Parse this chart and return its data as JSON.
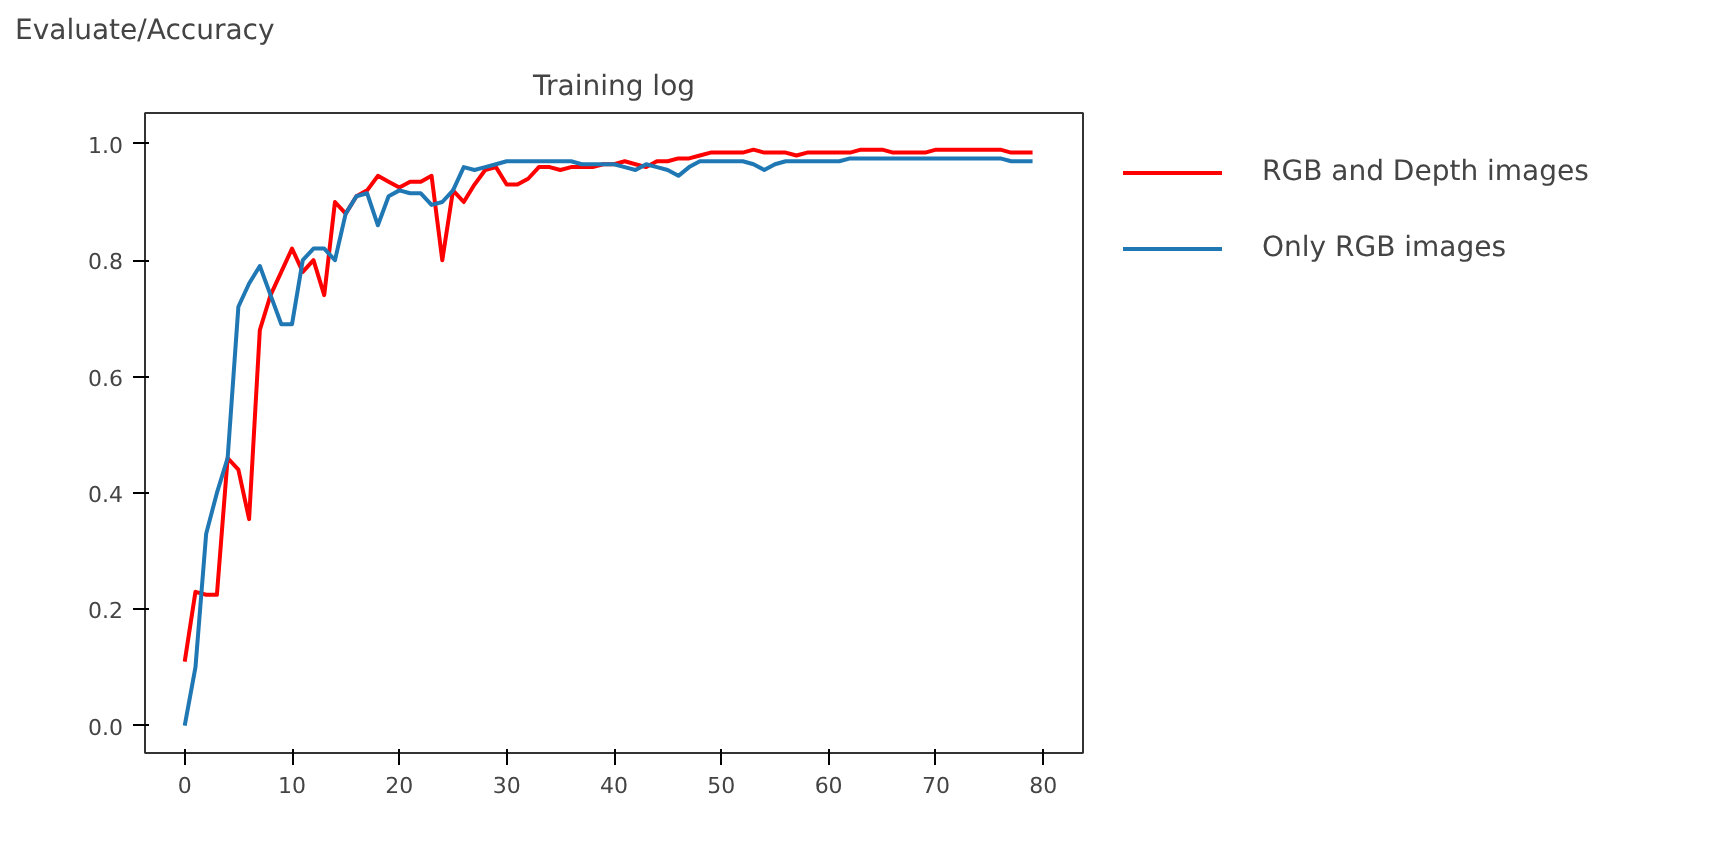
{
  "chart_data": {
    "type": "line",
    "title": "Training log",
    "ylabel": "Evaluate/Accuracy",
    "x": [
      0,
      1,
      2,
      3,
      4,
      5,
      6,
      7,
      8,
      9,
      10,
      11,
      12,
      13,
      14,
      15,
      16,
      17,
      18,
      19,
      20,
      21,
      22,
      23,
      24,
      25,
      26,
      27,
      28,
      29,
      30,
      31,
      32,
      33,
      34,
      35,
      36,
      37,
      38,
      39,
      40,
      41,
      42,
      43,
      44,
      45,
      46,
      47,
      48,
      49,
      50,
      51,
      52,
      53,
      54,
      55,
      56,
      57,
      58,
      59,
      60,
      61,
      62,
      63,
      64,
      65,
      66,
      67,
      68,
      69,
      70,
      71,
      72,
      73,
      74,
      75,
      76,
      77,
      78,
      79
    ],
    "series": [
      {
        "name": "RGB and Depth images",
        "color": "#ff0000",
        "values": [
          0.11,
          0.23,
          0.225,
          0.225,
          0.46,
          0.44,
          0.355,
          0.68,
          0.74,
          0.78,
          0.82,
          0.78,
          0.8,
          0.74,
          0.9,
          0.88,
          0.91,
          0.92,
          0.945,
          0.935,
          0.925,
          0.935,
          0.935,
          0.945,
          0.8,
          0.92,
          0.9,
          0.93,
          0.955,
          0.96,
          0.93,
          0.93,
          0.94,
          0.96,
          0.96,
          0.955,
          0.96,
          0.96,
          0.96,
          0.965,
          0.965,
          0.97,
          0.965,
          0.96,
          0.97,
          0.97,
          0.975,
          0.975,
          0.98,
          0.985,
          0.985,
          0.985,
          0.985,
          0.99,
          0.985,
          0.985,
          0.985,
          0.98,
          0.985,
          0.985,
          0.985,
          0.985,
          0.985,
          0.99,
          0.99,
          0.99,
          0.985,
          0.985,
          0.985,
          0.985,
          0.99,
          0.99,
          0.99,
          0.99,
          0.99,
          0.99,
          0.99,
          0.985,
          0.985,
          0.985
        ]
      },
      {
        "name": "Only RGB images",
        "color": "#1f77b4",
        "values": [
          0.0,
          0.1,
          0.33,
          0.4,
          0.46,
          0.72,
          0.76,
          0.79,
          0.74,
          0.69,
          0.69,
          0.8,
          0.82,
          0.82,
          0.8,
          0.88,
          0.91,
          0.915,
          0.86,
          0.91,
          0.92,
          0.915,
          0.915,
          0.895,
          0.9,
          0.92,
          0.96,
          0.955,
          0.96,
          0.965,
          0.97,
          0.97,
          0.97,
          0.97,
          0.97,
          0.97,
          0.97,
          0.965,
          0.965,
          0.965,
          0.965,
          0.96,
          0.955,
          0.965,
          0.96,
          0.955,
          0.945,
          0.96,
          0.97,
          0.97,
          0.97,
          0.97,
          0.97,
          0.965,
          0.955,
          0.965,
          0.97,
          0.97,
          0.97,
          0.97,
          0.97,
          0.97,
          0.975,
          0.975,
          0.975,
          0.975,
          0.975,
          0.975,
          0.975,
          0.975,
          0.975,
          0.975,
          0.975,
          0.975,
          0.975,
          0.975,
          0.975,
          0.97,
          0.97,
          0.97
        ]
      }
    ],
    "xlim": [
      -3.7,
      83.7
    ],
    "ylim": [
      -0.047,
      1.053
    ],
    "xticks": [
      0,
      10,
      20,
      30,
      40,
      50,
      60,
      70,
      80
    ],
    "yticks": [
      {
        "value": 0,
        "label": "0.0"
      },
      {
        "value": 0.2,
        "label": "0.2"
      },
      {
        "value": 0.4,
        "label": "0.4"
      },
      {
        "value": 0.6,
        "label": "0.6"
      },
      {
        "value": 0.8,
        "label": "0.8"
      },
      {
        "value": 1.0,
        "label": "1.0"
      }
    ],
    "grid": false,
    "legend": "top right",
    "line_style": "solid"
  }
}
